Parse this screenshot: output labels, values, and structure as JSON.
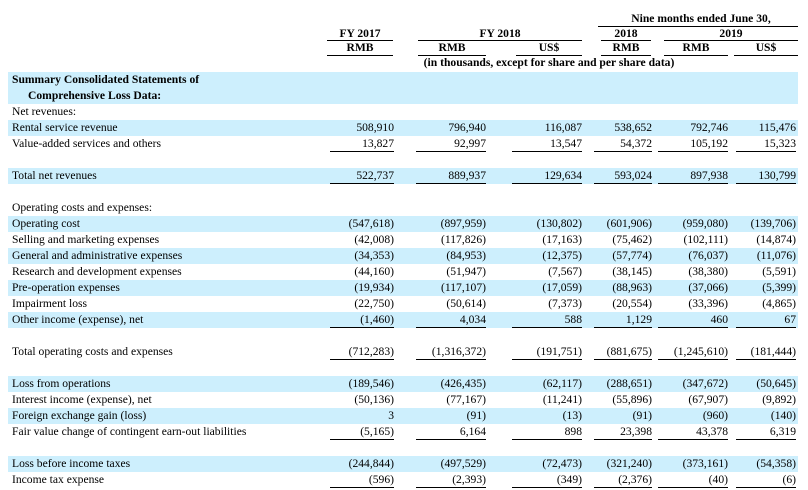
{
  "header": {
    "period_label": "Nine months ended June 30,",
    "col_fy2017": "FY 2017",
    "col_fy2018": "FY 2018",
    "col_2018": "2018",
    "col_2019": "2019",
    "unit_rmb_a": "RMB",
    "unit_rmb_b": "RMB",
    "unit_usd_a": "US$",
    "unit_rmb_c": "RMB",
    "unit_rmb_d": "RMB",
    "unit_usd_b": "US$",
    "note": "(in thousands, except for share and per share data)"
  },
  "rows": [
    {
      "label": "Summary Consolidated Statements of",
      "style": "bold",
      "shade": true
    },
    {
      "label": "Comprehensive Loss Data:",
      "style": "bold-indent",
      "shade": true
    },
    {
      "label": "Net revenues:",
      "shade": false
    },
    {
      "label": "Rental service revenue",
      "shade": true,
      "values": [
        "508,910",
        "796,940",
        "116,087",
        "538,652",
        "792,746",
        "115,476"
      ]
    },
    {
      "label": "Value-added services and others",
      "shade": false,
      "values": [
        "13,827",
        "92,997",
        "13,547",
        "54,372",
        "105,192",
        "15,323"
      ],
      "underline": true
    },
    {
      "label": "",
      "shade": false
    },
    {
      "label": "Total net revenues",
      "shade": true,
      "values": [
        "522,737",
        "889,937",
        "129,634",
        "593,024",
        "897,938",
        "130,799"
      ],
      "underline": true
    },
    {
      "label": "",
      "shade": false
    },
    {
      "label": "Operating costs and expenses:",
      "shade": false
    },
    {
      "label": "Operating cost",
      "shade": true,
      "values": [
        "(547,618)",
        "(897,959)",
        "(130,802)",
        "(601,906)",
        "(959,080)",
        "(139,706)"
      ]
    },
    {
      "label": "Selling and marketing expenses",
      "shade": false,
      "values": [
        "(42,008)",
        "(117,826)",
        "(17,163)",
        "(75,462)",
        "(102,111)",
        "(14,874)"
      ]
    },
    {
      "label": "General and administrative expenses",
      "shade": true,
      "values": [
        "(34,353)",
        "(84,953)",
        "(12,375)",
        "(57,774)",
        "(76,037)",
        "(11,076)"
      ]
    },
    {
      "label": "Research and development expenses",
      "shade": false,
      "values": [
        "(44,160)",
        "(51,947)",
        "(7,567)",
        "(38,145)",
        "(38,380)",
        "(5,591)"
      ]
    },
    {
      "label": "Pre-operation expenses",
      "shade": true,
      "values": [
        "(19,934)",
        "(117,107)",
        "(17,059)",
        "(88,963)",
        "(37,066)",
        "(5,399)"
      ]
    },
    {
      "label": "Impairment loss",
      "shade": false,
      "values": [
        "(22,750)",
        "(50,614)",
        "(7,373)",
        "(20,554)",
        "(33,396)",
        "(4,865)"
      ]
    },
    {
      "label": "Other income (expense), net",
      "shade": true,
      "values": [
        "(1,460)",
        "4,034",
        "588",
        "1,129",
        "460",
        "67"
      ],
      "underline": true
    },
    {
      "label": "",
      "shade": false
    },
    {
      "label": "Total operating costs and expenses",
      "shade": false,
      "values": [
        "(712,283)",
        "(1,316,372)",
        "(191,751)",
        "(881,675)",
        "(1,245,610)",
        "(181,444)"
      ],
      "underline": true
    },
    {
      "label": "",
      "shade": false
    },
    {
      "label": "Loss from operations",
      "shade": true,
      "values": [
        "(189,546)",
        "(426,435)",
        "(62,117)",
        "(288,651)",
        "(347,672)",
        "(50,645)"
      ]
    },
    {
      "label": "Interest income (expense), net",
      "shade": false,
      "values": [
        "(50,136)",
        "(77,167)",
        "(11,241)",
        "(55,896)",
        "(67,907)",
        "(9,892)"
      ]
    },
    {
      "label": "Foreign exchange gain (loss)",
      "shade": true,
      "values": [
        "3",
        "(91)",
        "(13)",
        "(91)",
        "(960)",
        "(140)"
      ]
    },
    {
      "label": "Fair value change of contingent earn-out liabilities",
      "shade": false,
      "values": [
        "(5,165)",
        "6,164",
        "898",
        "23,398",
        "43,378",
        "6,319"
      ],
      "underline": true
    },
    {
      "label": "",
      "shade": false
    },
    {
      "label": "Loss before income taxes",
      "shade": true,
      "values": [
        "(244,844)",
        "(497,529)",
        "(72,473)",
        "(321,240)",
        "(373,161)",
        "(54,358)"
      ]
    },
    {
      "label": "Income tax expense",
      "shade": false,
      "values": [
        "(596)",
        "(2,393)",
        "(349)",
        "(2,376)",
        "(40)",
        "(6)"
      ],
      "underline": true
    }
  ]
}
